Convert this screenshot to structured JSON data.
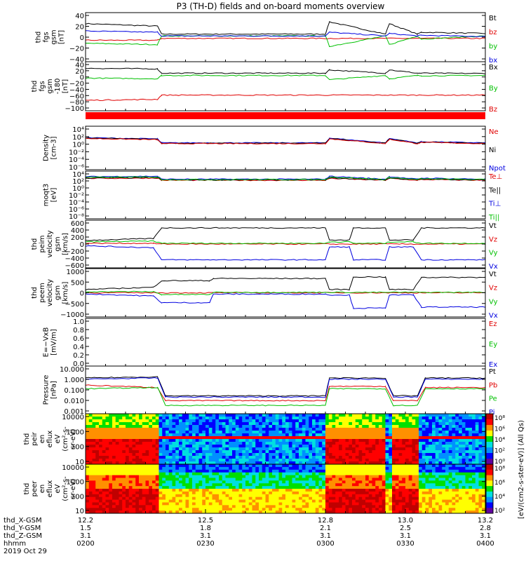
{
  "title": "P3 (TH-D) fields and on-board moments overview",
  "colors": {
    "black": "#000000",
    "red": "#e00000",
    "green": "#00c000",
    "blue": "#0000e0",
    "orange": "#ff7000"
  },
  "chart_data": [
    {
      "type": "line",
      "ylabel": [
        "thd",
        "fgs",
        "gsm",
        "[nT]"
      ],
      "yticks": [
        "40",
        "20",
        "0",
        "−20",
        "−40"
      ],
      "ylim": [
        -40,
        40
      ],
      "legend": [
        {
          "label": "Bt",
          "color": "#000000"
        },
        {
          "label": "bz",
          "color": "#e00000"
        },
        {
          "label": "by",
          "color": "#00c000"
        },
        {
          "label": "bx",
          "color": "#0000e0"
        }
      ],
      "series": [
        {
          "name": "Bt",
          "color": "#000000",
          "x": [
            12.2,
            12.38,
            12.39,
            12.8,
            12.81,
            12.95,
            12.96,
            13.03,
            13.04,
            13.2
          ],
          "y": [
            22,
            18,
            5,
            5,
            25,
            5,
            22,
            5,
            8,
            6
          ]
        },
        {
          "name": "bz",
          "color": "#e00000",
          "x": [
            12.2,
            12.38,
            12.39,
            13.2
          ],
          "y": [
            -5,
            -5,
            -2,
            -2
          ]
        },
        {
          "name": "by",
          "color": "#00c000",
          "x": [
            12.2,
            12.38,
            12.39,
            12.8,
            12.81,
            12.95,
            12.96,
            13.03,
            13.04,
            13.2
          ],
          "y": [
            -10,
            -12,
            2,
            2,
            -15,
            2,
            -12,
            2,
            -3,
            2
          ]
        },
        {
          "name": "bx",
          "color": "#0000e0",
          "x": [
            12.2,
            12.38,
            12.39,
            12.8,
            12.81,
            12.95,
            12.96,
            13.03,
            13.04,
            13.2
          ],
          "y": [
            10,
            8,
            2,
            2,
            8,
            2,
            6,
            2,
            3,
            1
          ]
        }
      ]
    },
    {
      "type": "line",
      "ylabel": [
        "thd",
        "fgs",
        "gsm",
        "-180",
        "[nT]"
      ],
      "yticks": [
        "40",
        "20",
        "0",
        "−20",
        "−40",
        "−60",
        "−80",
        "−100"
      ],
      "ylim": [
        -110,
        40
      ],
      "legend": [
        {
          "label": "Bx",
          "color": "#000000"
        },
        {
          "label": "By",
          "color": "#00c000"
        },
        {
          "label": "Bz",
          "color": "#e00000"
        }
      ],
      "series": [
        {
          "name": "Bx",
          "color": "#000000",
          "x": [
            12.2,
            12.38,
            12.39,
            12.8,
            12.81,
            12.95,
            12.96,
            13.03,
            13.04,
            13.2
          ],
          "y": [
            20,
            18,
            5,
            5,
            15,
            5,
            15,
            5,
            5,
            4
          ]
        },
        {
          "name": "By",
          "color": "#00c000",
          "x": [
            12.2,
            12.38,
            12.39,
            12.8,
            12.81,
            12.95,
            12.96,
            13.03,
            13.04,
            13.2
          ],
          "y": [
            -10,
            -12,
            -2,
            -2,
            -15,
            -2,
            -12,
            -2,
            -3,
            -2
          ]
        },
        {
          "name": "Bz",
          "color": "#e00000",
          "x": [
            12.2,
            12.38,
            12.39,
            13.2
          ],
          "y": [
            -78,
            -75,
            -62,
            -62
          ]
        }
      ]
    },
    {
      "type": "bar",
      "ylabel": [],
      "yticks": [],
      "legend": [],
      "series": []
    },
    {
      "type": "line",
      "ylabel": [
        "Density",
        "[cm-3]"
      ],
      "yticks": [
        "10⁴",
        "10²",
        "10⁰",
        "10⁻²",
        "10⁻⁴",
        "10⁻⁶"
      ],
      "ylim": [
        -6.5,
        4.5
      ],
      "log": true,
      "legend": [
        {
          "label": "Ne",
          "color": "#e00000"
        },
        {
          "label": "Ni",
          "color": "#000000"
        },
        {
          "label": "Npot",
          "color": "#0000e0"
        }
      ],
      "series": [
        {
          "name": "Npot",
          "color": "#0000e0",
          "x": [
            12.2,
            12.38,
            12.39,
            12.8,
            12.81,
            12.95,
            12.96,
            13.03,
            13.04,
            13.2
          ],
          "y": [
            1.6,
            1.3,
            0.3,
            0.3,
            1.5,
            0.3,
            1.4,
            0.3,
            0.6,
            0.3
          ]
        },
        {
          "name": "Ni",
          "color": "#000000",
          "x": [
            12.2,
            12.38,
            12.39,
            12.8,
            12.81,
            12.95,
            12.96,
            13.03,
            13.04,
            13.2
          ],
          "y": [
            1.5,
            1.2,
            0.2,
            0.2,
            1.4,
            0.2,
            1.3,
            0.2,
            0.5,
            0.2
          ]
        },
        {
          "name": "Ne",
          "color": "#e00000",
          "x": [
            12.2,
            12.38,
            12.39,
            12.8,
            12.81,
            12.95,
            12.96,
            13.03,
            13.04,
            13.2
          ],
          "y": [
            1.4,
            1.1,
            0.1,
            0.1,
            1.3,
            0.1,
            1.2,
            0.1,
            0.4,
            0.1
          ]
        }
      ]
    },
    {
      "type": "line",
      "ylabel": [
        "moqt3",
        "[eV]"
      ],
      "yticks": [
        "10⁴",
        "10²",
        "10⁰",
        "10⁻²",
        "10⁻⁴",
        "10⁻⁶",
        "10⁻⁸"
      ],
      "ylim": [
        -8.5,
        4.5
      ],
      "log": true,
      "legend": [
        {
          "label": "Te⊥",
          "color": "#e00000"
        },
        {
          "label": "Te||",
          "color": "#000000"
        },
        {
          "label": "Ti⊥",
          "color": "#0000e0"
        },
        {
          "label": "Ti||",
          "color": "#00c000"
        }
      ],
      "series": [
        {
          "name": "Te⊥",
          "color": "#e00000",
          "x": [
            12.2,
            12.38,
            12.39,
            12.8,
            12.81,
            12.95,
            12.96,
            13.03,
            13.04,
            13.2
          ],
          "y": [
            2.5,
            2.6,
            2.0,
            2.0,
            2.5,
            2.0,
            2.5,
            2.0,
            2.2,
            2.0
          ]
        },
        {
          "name": "Te||",
          "color": "#000000",
          "x": [
            12.2,
            12.38,
            12.39,
            12.8,
            12.81,
            12.95,
            12.96,
            13.03,
            13.04,
            13.2
          ],
          "y": [
            2.6,
            2.7,
            2.1,
            2.1,
            2.6,
            2.1,
            2.6,
            2.1,
            2.3,
            2.1
          ]
        },
        {
          "name": "Ti⊥",
          "color": "#0000e0",
          "x": [
            12.2,
            12.38,
            12.39,
            12.8,
            12.81,
            12.95,
            12.96,
            13.03,
            13.04,
            13.2
          ],
          "y": [
            3.0,
            3.1,
            2.3,
            2.3,
            3.1,
            2.3,
            3.0,
            2.3,
            2.6,
            2.3
          ]
        },
        {
          "name": "Ti||",
          "color": "#00c000",
          "x": [
            12.2,
            12.38,
            12.39,
            12.8,
            12.81,
            12.95,
            12.96,
            13.03,
            13.04,
            13.2
          ],
          "y": [
            2.8,
            2.9,
            2.2,
            2.2,
            2.9,
            2.2,
            2.8,
            2.2,
            2.4,
            2.2
          ]
        }
      ]
    },
    {
      "type": "line",
      "ylabel": [
        "thd",
        "peim",
        "velocity",
        "gsm",
        "[km/s]"
      ],
      "yticks": [
        "600",
        "400",
        "200",
        "0",
        "−200",
        "−400",
        "−600"
      ],
      "ylim": [
        -650,
        650
      ],
      "legend": [
        {
          "label": "Vt",
          "color": "#000000"
        },
        {
          "label": "Vz",
          "color": "#e00000"
        },
        {
          "label": "Vy",
          "color": "#00c000"
        },
        {
          "label": "Vx",
          "color": "#0000e0"
        }
      ],
      "series": [
        {
          "name": "Vt",
          "color": "#000000",
          "x": [
            12.2,
            12.37,
            12.39,
            12.8,
            12.81,
            12.86,
            12.87,
            12.95,
            12.96,
            13.02,
            13.04,
            13.2
          ],
          "y": [
            100,
            150,
            440,
            440,
            110,
            110,
            440,
            440,
            110,
            110,
            440,
            440
          ]
        },
        {
          "name": "Vz",
          "color": "#e00000",
          "x": [
            12.2,
            12.37,
            12.39,
            13.2
          ],
          "y": [
            20,
            20,
            0,
            0
          ]
        },
        {
          "name": "Vy",
          "color": "#00c000",
          "x": [
            12.2,
            12.37,
            12.39,
            12.8,
            12.81,
            12.86,
            12.87,
            12.95,
            12.96,
            13.02,
            13.04,
            13.2
          ],
          "y": [
            60,
            80,
            20,
            20,
            60,
            60,
            20,
            20,
            60,
            60,
            20,
            20
          ]
        },
        {
          "name": "Vx",
          "color": "#0000e0",
          "x": [
            12.2,
            12.37,
            12.39,
            12.8,
            12.81,
            12.86,
            12.87,
            12.95,
            12.96,
            13.02,
            13.04,
            13.2
          ],
          "y": [
            -50,
            -100,
            -430,
            -430,
            -80,
            -80,
            -430,
            -430,
            -80,
            -80,
            -430,
            -430
          ]
        }
      ]
    },
    {
      "type": "line",
      "ylabel": [
        "thd",
        "peem",
        "velocity",
        "gsm",
        "[km/s]"
      ],
      "yticks": [
        "1000",
        "500",
        "0",
        "−500",
        "−1000"
      ],
      "ylim": [
        -1100,
        1100
      ],
      "legend": [
        {
          "label": "Vt",
          "color": "#000000"
        },
        {
          "label": "Vz",
          "color": "#e00000"
        },
        {
          "label": "Vy",
          "color": "#00c000"
        },
        {
          "label": "Vx",
          "color": "#0000e0"
        }
      ],
      "series": [
        {
          "name": "Vt",
          "color": "#000000",
          "x": [
            12.2,
            12.37,
            12.39,
            12.51,
            12.52,
            12.8,
            12.81,
            12.86,
            12.87,
            12.95,
            12.96,
            13.02,
            13.04,
            13.2
          ],
          "y": [
            150,
            250,
            550,
            550,
            650,
            650,
            150,
            150,
            720,
            720,
            150,
            150,
            700,
            700
          ]
        },
        {
          "name": "Vz",
          "color": "#e00000",
          "x": [
            12.2,
            13.2
          ],
          "y": [
            0,
            0
          ]
        },
        {
          "name": "Vy",
          "color": "#00c000",
          "x": [
            12.2,
            12.37,
            12.39,
            12.51,
            12.52,
            13.2
          ],
          "y": [
            50,
            50,
            -80,
            -80,
            20,
            20
          ]
        },
        {
          "name": "Vx",
          "color": "#0000e0",
          "x": [
            12.2,
            12.37,
            12.39,
            12.51,
            12.52,
            12.8,
            12.81,
            12.86,
            12.87,
            12.95,
            12.96,
            13.02,
            13.04,
            13.2
          ],
          "y": [
            -50,
            -150,
            -450,
            -450,
            -60,
            -60,
            -100,
            -100,
            -700,
            -700,
            -100,
            -100,
            -650,
            -650
          ]
        }
      ]
    },
    {
      "type": "line",
      "ylabel": [
        "E=−VxB",
        "[mV/m]"
      ],
      "yticks": [
        "1.0",
        "0.8",
        "0.6",
        "0.4",
        "0.2",
        "0.0"
      ],
      "ylim": [
        0,
        1
      ],
      "legend": [
        {
          "label": "Ez",
          "color": "#e00000"
        },
        {
          "label": "Ey",
          "color": "#00c000"
        },
        {
          "label": "Ex",
          "color": "#0000e0"
        }
      ],
      "series": []
    },
    {
      "type": "line",
      "ylabel": [
        "Pressure",
        "[nPa]"
      ],
      "yticks": [
        "10.000",
        "1.000",
        "0.100",
        "0.010",
        "0.001"
      ],
      "ylim": [
        -3,
        1
      ],
      "log": true,
      "legend": [
        {
          "label": "Pt",
          "color": "#000000"
        },
        {
          "label": "Pb",
          "color": "#e00000"
        },
        {
          "label": "Pe",
          "color": "#00c000"
        },
        {
          "label": "Pi",
          "color": "#0000e0"
        }
      ],
      "series": [
        {
          "name": "Pt",
          "color": "#000000",
          "x": [
            12.2,
            12.38,
            12.4,
            12.8,
            12.81,
            12.95,
            12.97,
            13.03,
            13.05,
            13.2
          ],
          "y": [
            0.0,
            0.1,
            -1.5,
            -1.5,
            0.0,
            0.0,
            -1.5,
            -1.5,
            0.0,
            0.0
          ]
        },
        {
          "name": "Pi",
          "color": "#0000e0",
          "x": [
            12.2,
            12.38,
            12.4,
            12.8,
            12.81,
            12.95,
            12.97,
            13.03,
            13.05,
            13.2
          ],
          "y": [
            -0.1,
            0.0,
            -1.6,
            -1.6,
            -0.1,
            -0.1,
            -1.6,
            -1.6,
            -0.1,
            -0.1
          ]
        },
        {
          "name": "Pb",
          "color": "#e00000",
          "x": [
            12.2,
            12.38,
            12.4,
            12.8,
            12.81,
            12.95,
            12.97,
            13.03,
            13.05,
            13.2
          ],
          "y": [
            -0.6,
            -0.8,
            -1.9,
            -1.9,
            -0.7,
            -0.7,
            -1.9,
            -1.9,
            -0.8,
            -0.8
          ]
        },
        {
          "name": "Pe",
          "color": "#00c000",
          "x": [
            12.2,
            12.38,
            12.4,
            12.8,
            12.81,
            12.95,
            12.97,
            13.03,
            13.05,
            13.2
          ],
          "y": [
            -0.9,
            -0.8,
            -2.3,
            -2.3,
            -0.9,
            -0.9,
            -2.3,
            -2.3,
            -0.9,
            -0.9
          ]
        }
      ]
    },
    {
      "type": "heatmap",
      "ylabel": [
        "thd",
        "peir",
        "en",
        "eflux",
        "eV",
        "(cm²-s-",
        "sr-eV)"
      ],
      "yticks": [
        "10000",
        "1000",
        "100",
        "10"
      ],
      "ylim": [
        0.8,
        4.2
      ],
      "colorbar": {
        "ticks": [
          "10⁸",
          "10⁶",
          "10⁴",
          "10²",
          "10⁰"
        ]
      }
    },
    {
      "type": "heatmap",
      "ylabel": [
        "thd",
        "peer",
        "en",
        "eflux",
        "eV",
        "(cm²-s-",
        "sr-eV)"
      ],
      "yticks": [
        "10000",
        "1000",
        "100",
        "10"
      ],
      "ylim": [
        0.8,
        4.3
      ],
      "colorbar": {
        "ticks": [
          "10⁸",
          "10⁶",
          "10⁴",
          "10²"
        ]
      }
    }
  ],
  "xaxis": {
    "ticks": [
      12.2,
      12.5,
      12.8,
      13.0,
      13.2
    ],
    "rows": [
      {
        "label": "thd_X-GSM",
        "values": [
          "12.2",
          "12.5",
          "12.8",
          "13.0",
          "13.2"
        ]
      },
      {
        "label": "thd_Y-GSM",
        "values": [
          "1.5",
          "1.8",
          "2.1",
          "2.5",
          "2.8"
        ]
      },
      {
        "label": "thd_Z-GSM",
        "values": [
          "3.1",
          "3.1",
          "3.1",
          "3.1",
          "3.1"
        ]
      },
      {
        "label": "hhmm",
        "values": [
          "0200",
          "0230",
          "0300",
          "0330",
          "0400"
        ]
      }
    ],
    "date": "2019 Oct 29"
  },
  "colorbar_label": "[eV/(cm2-s-ster-eV)] (All Qs)"
}
